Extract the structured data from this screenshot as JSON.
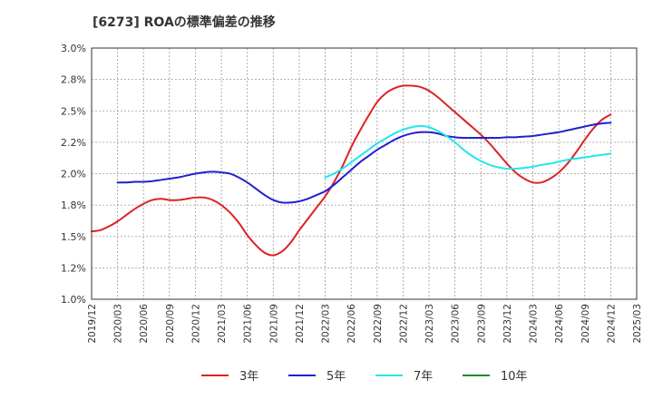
{
  "chart_data": {
    "type": "line",
    "title": "[6273]  ROAの標準偏差の推移",
    "xlabel": "",
    "ylabel": "",
    "ylim": [
      1.0,
      3.0
    ],
    "y_ticks": [
      "3.0%",
      "2.8%",
      "2.5%",
      "2.2%",
      "2.0%",
      "1.8%",
      "1.5%",
      "1.2%",
      "1.0%"
    ],
    "x_ticks": [
      "2019/12",
      "2020/03",
      "2020/06",
      "2020/09",
      "2020/12",
      "2021/03",
      "2021/06",
      "2021/09",
      "2021/12",
      "2022/03",
      "2022/06",
      "2022/09",
      "2022/12",
      "2023/03",
      "2023/06",
      "2023/09",
      "2023/12",
      "2024/03",
      "2024/06",
      "2024/09",
      "2024/12",
      "2025/03"
    ],
    "grid": true,
    "legend_position": "bottom",
    "series": [
      {
        "name": "3年",
        "color": "#dd2222",
        "points": [
          [
            "2019/12",
            1.54
          ],
          [
            "2020/01",
            1.55
          ],
          [
            "2020/02",
            1.58
          ],
          [
            "2020/03",
            1.62
          ],
          [
            "2020/04",
            1.67
          ],
          [
            "2020/05",
            1.72
          ],
          [
            "2020/06",
            1.76
          ],
          [
            "2020/07",
            1.79
          ],
          [
            "2020/08",
            1.8
          ],
          [
            "2020/09",
            1.79
          ],
          [
            "2020/10",
            1.79
          ],
          [
            "2020/11",
            1.8
          ],
          [
            "2020/12",
            1.81
          ],
          [
            "2021/01",
            1.81
          ],
          [
            "2021/02",
            1.79
          ],
          [
            "2021/03",
            1.75
          ],
          [
            "2021/04",
            1.69
          ],
          [
            "2021/05",
            1.61
          ],
          [
            "2021/06",
            1.51
          ],
          [
            "2021/07",
            1.43
          ],
          [
            "2021/08",
            1.37
          ],
          [
            "2021/09",
            1.35
          ],
          [
            "2021/10",
            1.38
          ],
          [
            "2021/11",
            1.45
          ],
          [
            "2021/12",
            1.55
          ],
          [
            "2022/01",
            1.64
          ],
          [
            "2022/02",
            1.73
          ],
          [
            "2022/03",
            1.82
          ],
          [
            "2022/04",
            1.93
          ],
          [
            "2022/05",
            2.06
          ],
          [
            "2022/06",
            2.21
          ],
          [
            "2022/07",
            2.34
          ],
          [
            "2022/08",
            2.46
          ],
          [
            "2022/09",
            2.57
          ],
          [
            "2022/10",
            2.64
          ],
          [
            "2022/11",
            2.68
          ],
          [
            "2022/12",
            2.7
          ],
          [
            "2023/01",
            2.7
          ],
          [
            "2023/02",
            2.69
          ],
          [
            "2023/03",
            2.66
          ],
          [
            "2023/04",
            2.61
          ],
          [
            "2023/05",
            2.55
          ],
          [
            "2023/06",
            2.49
          ],
          [
            "2023/07",
            2.43
          ],
          [
            "2023/08",
            2.37
          ],
          [
            "2023/09",
            2.31
          ],
          [
            "2023/10",
            2.24
          ],
          [
            "2023/11",
            2.16
          ],
          [
            "2023/12",
            2.08
          ],
          [
            "2024/01",
            2.01
          ],
          [
            "2024/02",
            1.96
          ],
          [
            "2024/03",
            1.93
          ],
          [
            "2024/04",
            1.93
          ],
          [
            "2024/05",
            1.96
          ],
          [
            "2024/06",
            2.01
          ],
          [
            "2024/07",
            2.08
          ],
          [
            "2024/08",
            2.17
          ],
          [
            "2024/09",
            2.27
          ],
          [
            "2024/10",
            2.36
          ],
          [
            "2024/11",
            2.43
          ],
          [
            "2024/12",
            2.47
          ]
        ]
      },
      {
        "name": "5年",
        "color": "#1f1fd0",
        "points": [
          [
            "2020/03",
            1.93
          ],
          [
            "2020/04",
            1.93
          ],
          [
            "2020/05",
            1.935
          ],
          [
            "2020/06",
            1.935
          ],
          [
            "2020/07",
            1.94
          ],
          [
            "2020/08",
            1.95
          ],
          [
            "2020/09",
            1.96
          ],
          [
            "2020/10",
            1.97
          ],
          [
            "2020/11",
            1.985
          ],
          [
            "2020/12",
            2.0
          ],
          [
            "2021/01",
            2.01
          ],
          [
            "2021/02",
            2.015
          ],
          [
            "2021/03",
            2.01
          ],
          [
            "2021/04",
            2.0
          ],
          [
            "2021/05",
            1.97
          ],
          [
            "2021/06",
            1.93
          ],
          [
            "2021/07",
            1.88
          ],
          [
            "2021/08",
            1.83
          ],
          [
            "2021/09",
            1.79
          ],
          [
            "2021/10",
            1.77
          ],
          [
            "2021/11",
            1.77
          ],
          [
            "2021/12",
            1.78
          ],
          [
            "2022/01",
            1.8
          ],
          [
            "2022/02",
            1.83
          ],
          [
            "2022/03",
            1.86
          ],
          [
            "2022/04",
            1.91
          ],
          [
            "2022/05",
            1.97
          ],
          [
            "2022/06",
            2.03
          ],
          [
            "2022/07",
            2.09
          ],
          [
            "2022/08",
            2.14
          ],
          [
            "2022/09",
            2.19
          ],
          [
            "2022/10",
            2.23
          ],
          [
            "2022/11",
            2.27
          ],
          [
            "2022/12",
            2.3
          ],
          [
            "2023/01",
            2.32
          ],
          [
            "2023/02",
            2.33
          ],
          [
            "2023/03",
            2.33
          ],
          [
            "2023/04",
            2.32
          ],
          [
            "2023/05",
            2.3
          ],
          [
            "2023/06",
            2.29
          ],
          [
            "2023/07",
            2.285
          ],
          [
            "2023/08",
            2.285
          ],
          [
            "2023/09",
            2.285
          ],
          [
            "2023/10",
            2.285
          ],
          [
            "2023/11",
            2.285
          ],
          [
            "2023/12",
            2.29
          ],
          [
            "2024/01",
            2.29
          ],
          [
            "2024/02",
            2.295
          ],
          [
            "2024/03",
            2.3
          ],
          [
            "2024/04",
            2.31
          ],
          [
            "2024/05",
            2.32
          ],
          [
            "2024/06",
            2.33
          ],
          [
            "2024/07",
            2.345
          ],
          [
            "2024/08",
            2.36
          ],
          [
            "2024/09",
            2.375
          ],
          [
            "2024/10",
            2.39
          ],
          [
            "2024/11",
            2.4
          ],
          [
            "2024/12",
            2.405
          ]
        ]
      },
      {
        "name": "7年",
        "color": "#22e6ee",
        "points": [
          [
            "2022/03",
            1.97
          ],
          [
            "2022/04",
            2.0
          ],
          [
            "2022/05",
            2.04
          ],
          [
            "2022/06",
            2.09
          ],
          [
            "2022/07",
            2.14
          ],
          [
            "2022/08",
            2.19
          ],
          [
            "2022/09",
            2.24
          ],
          [
            "2022/10",
            2.28
          ],
          [
            "2022/11",
            2.32
          ],
          [
            "2022/12",
            2.35
          ],
          [
            "2023/01",
            2.37
          ],
          [
            "2023/02",
            2.38
          ],
          [
            "2023/03",
            2.37
          ],
          [
            "2023/04",
            2.34
          ],
          [
            "2023/05",
            2.3
          ],
          [
            "2023/06",
            2.25
          ],
          [
            "2023/07",
            2.19
          ],
          [
            "2023/08",
            2.14
          ],
          [
            "2023/09",
            2.1
          ],
          [
            "2023/10",
            2.07
          ],
          [
            "2023/11",
            2.05
          ],
          [
            "2023/12",
            2.04
          ],
          [
            "2024/01",
            2.04
          ],
          [
            "2024/02",
            2.045
          ],
          [
            "2024/03",
            2.055
          ],
          [
            "2024/04",
            2.07
          ],
          [
            "2024/05",
            2.08
          ],
          [
            "2024/06",
            2.095
          ],
          [
            "2024/07",
            2.11
          ],
          [
            "2024/08",
            2.12
          ],
          [
            "2024/09",
            2.13
          ],
          [
            "2024/10",
            2.14
          ],
          [
            "2024/11",
            2.15
          ],
          [
            "2024/12",
            2.16
          ]
        ]
      },
      {
        "name": "10年",
        "color": "#228b22",
        "points": []
      }
    ]
  }
}
